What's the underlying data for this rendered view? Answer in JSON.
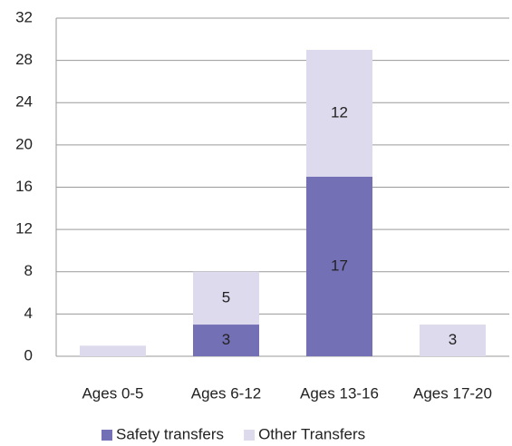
{
  "chart_data": {
    "type": "stacked_bar",
    "categories": [
      "Ages 0-5",
      "Ages 6-12",
      "Ages 13-16",
      "Ages 17-20"
    ],
    "series": [
      {
        "name": "Safety transfers",
        "color": "#7470b5",
        "values": [
          0,
          3,
          17,
          0
        ],
        "value_labels": [
          null,
          "3",
          "17",
          null
        ]
      },
      {
        "name": "Other Transfers",
        "color": "#dcdaec",
        "values": [
          1,
          5,
          12,
          3
        ],
        "value_labels": [
          null,
          "5",
          "12",
          "3"
        ]
      }
    ],
    "ylim": [
      0,
      32
    ],
    "yticks": [
      0,
      4,
      8,
      12,
      16,
      20,
      24,
      28,
      32
    ],
    "grid": true,
    "legend": "bottom"
  }
}
